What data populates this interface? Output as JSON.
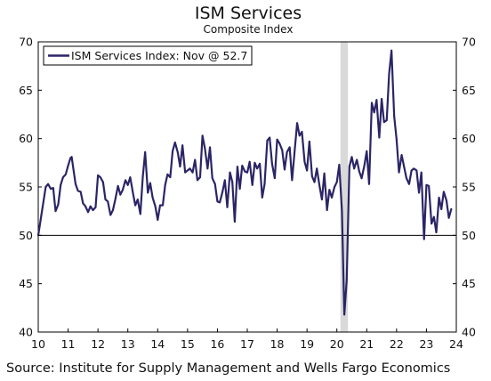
{
  "chart_data": {
    "type": "line",
    "title": "ISM Services",
    "subtitle": "Composite Index",
    "source": "Source: Institute for Supply Management and Wells Fargo Economics",
    "xlim": [
      2010,
      2024
    ],
    "ylim": [
      40,
      70
    ],
    "y_ticks": [
      40,
      45,
      50,
      55,
      60,
      65,
      70
    ],
    "y_ticks_right": [
      40,
      45,
      50,
      55,
      60,
      65,
      70
    ],
    "x_tick_labels": [
      "10",
      "11",
      "12",
      "13",
      "14",
      "15",
      "16",
      "17",
      "18",
      "19",
      "20",
      "21",
      "22",
      "23",
      "24"
    ],
    "reference_line": 50,
    "recession_shading": [
      2020.12,
      2020.37
    ],
    "legend": {
      "label": "ISM Services Index: Nov @ 52.7",
      "placement": "top-left"
    },
    "colors": {
      "series": "#2b2566",
      "recession": "#d9d9d9",
      "axis": "#000000"
    },
    "series": [
      {
        "name": "ISM Services Index: Nov @ 52.7",
        "points": [
          [
            2010.0,
            50.0
          ],
          [
            2010.1,
            52.0
          ],
          [
            2010.2,
            54.0
          ],
          [
            2010.25,
            55.0
          ],
          [
            2010.33,
            55.3
          ],
          [
            2010.42,
            54.8
          ],
          [
            2010.5,
            54.9
          ],
          [
            2010.58,
            52.5
          ],
          [
            2010.67,
            53.2
          ],
          [
            2010.75,
            55.2
          ],
          [
            2010.83,
            56.0
          ],
          [
            2010.92,
            56.3
          ],
          [
            2011.0,
            57.2
          ],
          [
            2011.08,
            58.0
          ],
          [
            2011.12,
            58.1
          ],
          [
            2011.17,
            57.0
          ],
          [
            2011.25,
            55.3
          ],
          [
            2011.33,
            54.6
          ],
          [
            2011.42,
            54.5
          ],
          [
            2011.5,
            53.3
          ],
          [
            2011.58,
            53.0
          ],
          [
            2011.67,
            52.4
          ],
          [
            2011.75,
            53.0
          ],
          [
            2011.83,
            52.6
          ],
          [
            2011.92,
            52.9
          ],
          [
            2012.0,
            56.2
          ],
          [
            2012.08,
            56.0
          ],
          [
            2012.17,
            55.5
          ],
          [
            2012.25,
            53.7
          ],
          [
            2012.33,
            53.5
          ],
          [
            2012.42,
            52.1
          ],
          [
            2012.5,
            52.6
          ],
          [
            2012.58,
            53.7
          ],
          [
            2012.67,
            55.1
          ],
          [
            2012.75,
            54.2
          ],
          [
            2012.83,
            54.7
          ],
          [
            2012.92,
            55.7
          ],
          [
            2013.0,
            55.2
          ],
          [
            2013.08,
            56.0
          ],
          [
            2013.17,
            54.4
          ],
          [
            2013.25,
            53.1
          ],
          [
            2013.33,
            53.7
          ],
          [
            2013.42,
            52.2
          ],
          [
            2013.5,
            56.0
          ],
          [
            2013.58,
            58.6
          ],
          [
            2013.67,
            54.4
          ],
          [
            2013.75,
            55.4
          ],
          [
            2013.83,
            53.9
          ],
          [
            2013.92,
            53.0
          ],
          [
            2014.0,
            51.6
          ],
          [
            2014.08,
            53.1
          ],
          [
            2014.17,
            53.1
          ],
          [
            2014.25,
            55.2
          ],
          [
            2014.33,
            56.3
          ],
          [
            2014.42,
            56.0
          ],
          [
            2014.5,
            58.7
          ],
          [
            2014.58,
            59.6
          ],
          [
            2014.67,
            58.6
          ],
          [
            2014.75,
            57.1
          ],
          [
            2014.83,
            59.3
          ],
          [
            2014.92,
            56.5
          ],
          [
            2015.0,
            56.7
          ],
          [
            2015.08,
            56.9
          ],
          [
            2015.17,
            56.5
          ],
          [
            2015.25,
            57.8
          ],
          [
            2015.33,
            55.7
          ],
          [
            2015.42,
            56.0
          ],
          [
            2015.5,
            60.3
          ],
          [
            2015.58,
            59.0
          ],
          [
            2015.67,
            56.9
          ],
          [
            2015.75,
            59.1
          ],
          [
            2015.83,
            55.9
          ],
          [
            2015.92,
            55.3
          ],
          [
            2016.0,
            53.5
          ],
          [
            2016.08,
            53.4
          ],
          [
            2016.17,
            54.5
          ],
          [
            2016.25,
            55.7
          ],
          [
            2016.33,
            52.9
          ],
          [
            2016.42,
            56.5
          ],
          [
            2016.5,
            55.5
          ],
          [
            2016.58,
            51.4
          ],
          [
            2016.67,
            57.1
          ],
          [
            2016.75,
            54.8
          ],
          [
            2016.83,
            57.2
          ],
          [
            2016.92,
            56.6
          ],
          [
            2017.0,
            56.5
          ],
          [
            2017.08,
            57.6
          ],
          [
            2017.17,
            55.2
          ],
          [
            2017.25,
            57.5
          ],
          [
            2017.33,
            56.9
          ],
          [
            2017.42,
            57.4
          ],
          [
            2017.5,
            53.9
          ],
          [
            2017.58,
            55.3
          ],
          [
            2017.67,
            59.8
          ],
          [
            2017.75,
            60.1
          ],
          [
            2017.83,
            57.4
          ],
          [
            2017.92,
            55.9
          ],
          [
            2018.0,
            59.9
          ],
          [
            2018.08,
            59.5
          ],
          [
            2018.17,
            58.8
          ],
          [
            2018.25,
            56.8
          ],
          [
            2018.33,
            58.6
          ],
          [
            2018.42,
            59.1
          ],
          [
            2018.5,
            55.7
          ],
          [
            2018.58,
            58.5
          ],
          [
            2018.67,
            61.6
          ],
          [
            2018.75,
            60.3
          ],
          [
            2018.83,
            60.7
          ],
          [
            2018.92,
            57.6
          ],
          [
            2019.0,
            56.7
          ],
          [
            2019.08,
            59.7
          ],
          [
            2019.17,
            56.1
          ],
          [
            2019.25,
            55.5
          ],
          [
            2019.33,
            56.9
          ],
          [
            2019.42,
            55.1
          ],
          [
            2019.5,
            53.7
          ],
          [
            2019.58,
            56.4
          ],
          [
            2019.67,
            52.6
          ],
          [
            2019.75,
            54.7
          ],
          [
            2019.83,
            53.9
          ],
          [
            2019.92,
            55.0
          ],
          [
            2020.0,
            55.5
          ],
          [
            2020.08,
            57.3
          ],
          [
            2020.17,
            52.5
          ],
          [
            2020.25,
            41.8
          ],
          [
            2020.33,
            45.4
          ],
          [
            2020.42,
            57.1
          ],
          [
            2020.5,
            58.1
          ],
          [
            2020.58,
            56.9
          ],
          [
            2020.67,
            57.8
          ],
          [
            2020.75,
            56.6
          ],
          [
            2020.83,
            55.9
          ],
          [
            2020.92,
            57.2
          ],
          [
            2021.0,
            58.7
          ],
          [
            2021.08,
            55.3
          ],
          [
            2021.17,
            63.7
          ],
          [
            2021.25,
            62.7
          ],
          [
            2021.33,
            64.0
          ],
          [
            2021.42,
            60.1
          ],
          [
            2021.5,
            64.1
          ],
          [
            2021.58,
            61.7
          ],
          [
            2021.67,
            61.9
          ],
          [
            2021.75,
            66.7
          ],
          [
            2021.83,
            69.1
          ],
          [
            2021.92,
            62.3
          ],
          [
            2022.0,
            59.9
          ],
          [
            2022.08,
            56.5
          ],
          [
            2022.17,
            58.3
          ],
          [
            2022.25,
            57.1
          ],
          [
            2022.33,
            55.9
          ],
          [
            2022.42,
            55.3
          ],
          [
            2022.5,
            56.7
          ],
          [
            2022.58,
            56.9
          ],
          [
            2022.67,
            56.7
          ],
          [
            2022.75,
            54.4
          ],
          [
            2022.83,
            56.5
          ],
          [
            2022.92,
            49.6
          ],
          [
            2023.0,
            55.2
          ],
          [
            2023.08,
            55.1
          ],
          [
            2023.17,
            51.2
          ],
          [
            2023.25,
            51.9
          ],
          [
            2023.33,
            50.3
          ],
          [
            2023.42,
            53.9
          ],
          [
            2023.5,
            52.7
          ],
          [
            2023.58,
            54.5
          ],
          [
            2023.67,
            53.6
          ],
          [
            2023.75,
            51.8
          ],
          [
            2023.83,
            52.7
          ]
        ]
      }
    ]
  }
}
